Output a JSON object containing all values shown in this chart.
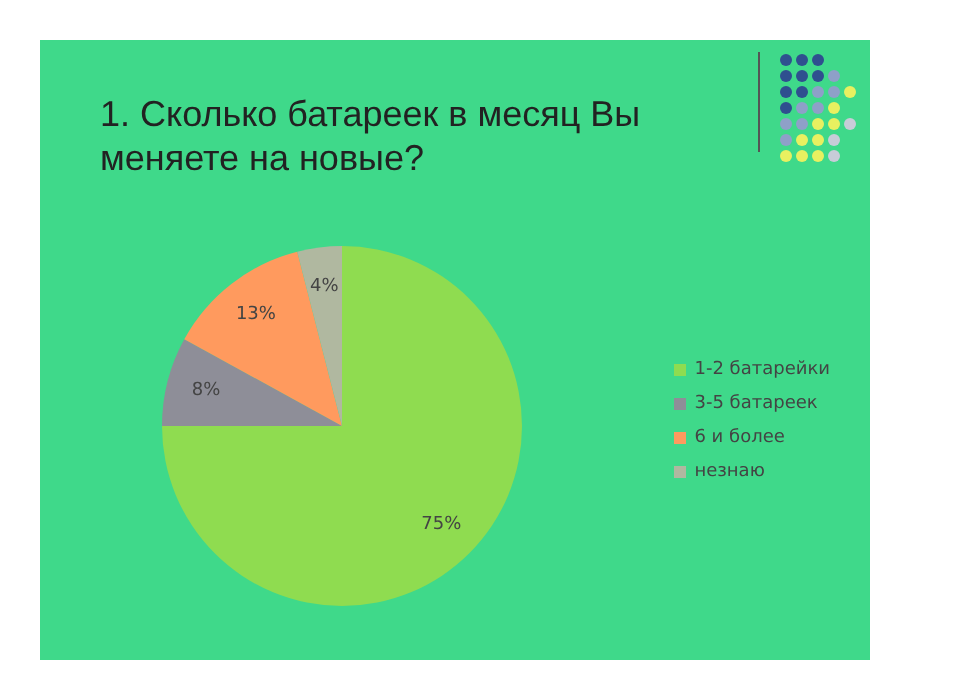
{
  "chart_data": {
    "type": "pie",
    "title": "1. Сколько батареек в месяц Вы меняете на новые?",
    "categories": [
      "1-2 батарейки",
      "3-5 батареек",
      "6 и более",
      "незнаю"
    ],
    "values": [
      75,
      8,
      13,
      4
    ],
    "colors": [
      "#8fdc50",
      "#8e8e98",
      "#ff9a5e",
      "#b0b8a0"
    ],
    "value_labels": [
      "75%",
      "8%",
      "13%",
      "4%"
    ],
    "legend": "right"
  }
}
